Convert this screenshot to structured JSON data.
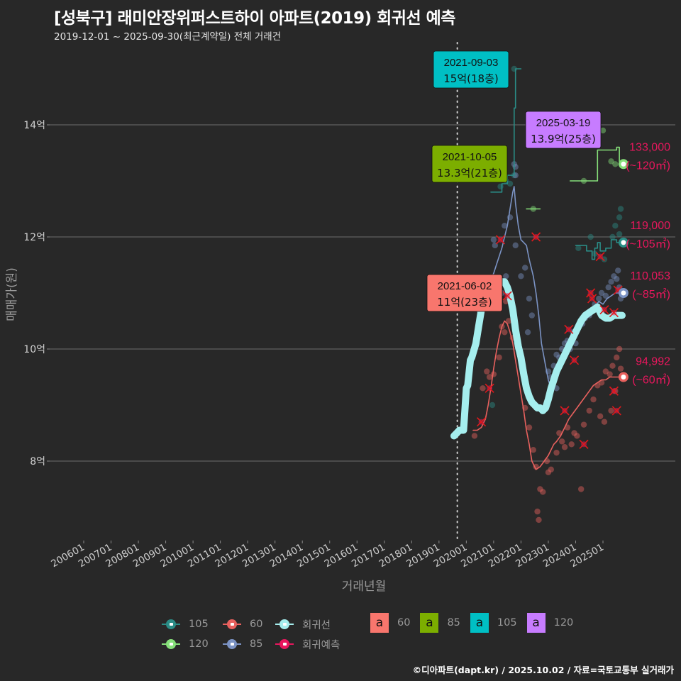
{
  "header": {
    "title": "[성북구] 래미안장위퍼스트하이 아파트(2019) 회귀선 예측",
    "subtitle": "2019-12-01 ~ 2025-09-30(최근계약일) 전체 거래건"
  },
  "footer": "©디아파트(dapt.kr) / 2025.10.02 / 자료=국토교통부 실거래가",
  "chart_data": {
    "type": "line",
    "title": "[성북구] 래미안장위퍼스트하이 아파트(2019) 회귀선 예측",
    "xlabel": "거래년월",
    "ylabel": "매매가(원)",
    "ylim": [
      6.6,
      15.8
    ],
    "xlim": [
      2005.3,
      2026.0
    ],
    "yticks": [
      {
        "value": 8,
        "label": "8억"
      },
      {
        "value": 10,
        "label": "10억"
      },
      {
        "value": 12,
        "label": "12억"
      },
      {
        "value": 14,
        "label": "14억"
      }
    ],
    "xticks": [
      "200601",
      "200701",
      "200801",
      "200901",
      "201001",
      "201101",
      "201201",
      "201301",
      "201401",
      "201501",
      "201601",
      "201701",
      "201801",
      "201901",
      "202001",
      "202101",
      "202201",
      "202301",
      "202401",
      "202501"
    ],
    "grid": true,
    "reference_line": {
      "x": 2019.67,
      "style": "dotted"
    },
    "colors": {
      "s105": "#2a8c86",
      "s60": "#e8615e",
      "s120": "#86e07a",
      "s85": "#7b93c4",
      "regression": "#a5eeee",
      "prediction": "#e8175d",
      "box60": "#f8766d",
      "box85": "#7cae00",
      "box105": "#00bfc4",
      "box120": "#c77cff"
    },
    "series": [
      {
        "name": "105",
        "color": "#2a8c86",
        "x": [
          2020.9,
          2021.2,
          2021.3,
          2021.45,
          2021.5,
          2021.68,
          2021.75,
          2021.8,
          2021.85,
          2021.9,
          2021.95,
          2022.0
        ],
        "y": [
          12.8,
          12.8,
          12.95,
          12.95,
          13.1,
          13.1,
          14.3,
          15.0,
          15.0,
          15.0,
          15.0,
          15.0
        ]
      },
      {
        "name": "105b",
        "color": "#2a8c86",
        "x": [
          2024.0,
          2024.3,
          2024.4,
          2024.5,
          2024.6,
          2024.7,
          2024.8,
          2024.9,
          2025.1,
          2025.3,
          2025.5,
          2025.7
        ],
        "y": [
          11.85,
          11.85,
          11.75,
          11.75,
          11.6,
          11.8,
          11.9,
          11.75,
          11.8,
          11.95,
          11.9,
          11.9
        ]
      },
      {
        "name": "120",
        "color": "#86e07a",
        "x": [
          2022.2,
          2022.7
        ],
        "y": [
          12.5,
          12.5
        ]
      },
      {
        "name": "120b",
        "color": "#86e07a",
        "x": [
          2023.8,
          2024.6,
          2024.75,
          2024.8,
          2025.35,
          2025.5,
          2025.6,
          2025.7
        ],
        "y": [
          13.0,
          13.0,
          13.0,
          13.55,
          13.55,
          13.6,
          13.35,
          13.3
        ]
      },
      {
        "name": "85",
        "color": "#7b93c4",
        "x": [
          2020.4,
          2020.5,
          2020.7,
          2020.85,
          2021.0,
          2021.1,
          2021.2,
          2021.3,
          2021.4,
          2021.5,
          2021.6,
          2021.7,
          2021.75,
          2021.8,
          2021.9,
          2022.0,
          2022.1,
          2022.2,
          2022.3,
          2022.45,
          2022.55,
          2022.65,
          2022.75,
          2022.9,
          2023.0,
          2023.1,
          2023.2,
          2023.35,
          2023.5,
          2023.65,
          2023.8,
          2023.95,
          2024.1,
          2024.25,
          2024.4,
          2024.55,
          2024.7,
          2024.85,
          2025.0,
          2025.15,
          2025.3,
          2025.45,
          2025.6,
          2025.7
        ],
        "y": [
          10.7,
          10.9,
          11.0,
          11.2,
          11.35,
          11.5,
          11.65,
          11.8,
          12.0,
          12.2,
          12.5,
          12.8,
          12.9,
          12.6,
          12.2,
          11.95,
          11.9,
          11.85,
          11.6,
          11.3,
          11.0,
          10.6,
          10.1,
          9.7,
          9.45,
          9.3,
          9.35,
          9.55,
          9.75,
          9.95,
          10.1,
          10.2,
          10.35,
          10.5,
          10.6,
          10.65,
          10.75,
          10.85,
          10.8,
          10.9,
          10.95,
          11.0,
          11.0,
          11.0
        ]
      },
      {
        "name": "60",
        "color": "#e8615e",
        "x": [
          2020.25,
          2020.4,
          2020.55,
          2020.7,
          2020.8,
          2020.9,
          2021.0,
          2021.1,
          2021.2,
          2021.3,
          2021.4,
          2021.5,
          2021.6,
          2021.7,
          2021.8,
          2021.9,
          2022.0,
          2022.1,
          2022.2,
          2022.3,
          2022.4,
          2022.55,
          2022.7,
          2022.85,
          2023.0,
          2023.1,
          2023.2,
          2023.3,
          2023.45,
          2023.6,
          2023.75,
          2023.9,
          2024.05,
          2024.2,
          2024.35,
          2024.5,
          2024.65,
          2024.8,
          2024.95,
          2025.1,
          2025.25,
          2025.4,
          2025.55,
          2025.7
        ],
        "y": [
          8.55,
          8.55,
          8.6,
          8.75,
          9.0,
          9.3,
          9.65,
          9.95,
          10.2,
          10.4,
          10.5,
          10.45,
          10.3,
          10.1,
          9.8,
          9.5,
          9.2,
          8.9,
          8.55,
          8.3,
          8.0,
          7.85,
          7.9,
          8.0,
          8.1,
          8.2,
          8.3,
          8.35,
          8.45,
          8.6,
          8.75,
          8.85,
          8.95,
          9.05,
          9.15,
          9.25,
          9.35,
          9.4,
          9.45,
          9.45,
          9.5,
          9.5,
          9.5,
          9.5
        ]
      },
      {
        "name": "회귀선",
        "color": "#a5eeee",
        "x": [
          2019.55,
          2019.65,
          2019.75,
          2019.85,
          2019.9,
          2020.0,
          2020.05,
          2020.15,
          2020.2,
          2020.35,
          2020.45,
          2020.55,
          2020.7,
          2020.8,
          2020.9,
          2021.0,
          2021.1,
          2021.2,
          2021.3,
          2021.4,
          2021.5,
          2021.6,
          2021.7,
          2021.8,
          2021.9,
          2022.0,
          2022.1,
          2022.2,
          2022.3,
          2022.4,
          2022.5,
          2022.6,
          2022.7,
          2022.8,
          2022.9,
          2023.0,
          2023.1,
          2023.2,
          2023.3,
          2023.45,
          2023.6,
          2023.75,
          2023.9,
          2024.05,
          2024.2,
          2024.35,
          2024.5,
          2024.65,
          2024.8,
          2024.95,
          2025.1,
          2025.25,
          2025.4,
          2025.55,
          2025.7
        ],
        "y": [
          8.45,
          8.5,
          8.55,
          8.55,
          8.55,
          9.3,
          9.35,
          9.8,
          9.85,
          10.1,
          10.4,
          10.7,
          10.85,
          11.0,
          11.1,
          11.15,
          11.2,
          11.2,
          11.2,
          11.2,
          11.1,
          10.95,
          10.7,
          10.35,
          10.05,
          9.85,
          9.55,
          9.3,
          9.15,
          9.05,
          9.0,
          8.95,
          8.95,
          8.9,
          8.95,
          9.1,
          9.3,
          9.45,
          9.6,
          9.75,
          9.9,
          10.05,
          10.2,
          10.35,
          10.5,
          10.6,
          10.65,
          10.7,
          10.75,
          10.6,
          10.55,
          10.55,
          10.6,
          10.6,
          10.6
        ]
      }
    ],
    "points": {
      "s105": [
        [
          2021.25,
          12.9
        ],
        [
          2021.45,
          13.0
        ],
        [
          2021.6,
          12.95
        ],
        [
          2021.75,
          13.1
        ],
        [
          2024.1,
          11.8
        ],
        [
          2024.55,
          12.0
        ],
        [
          2024.7,
          11.7
        ],
        [
          2025.05,
          11.6
        ],
        [
          2025.35,
          12.0
        ],
        [
          2025.45,
          12.2
        ],
        [
          2025.6,
          12.35
        ],
        [
          2025.6,
          12.05
        ],
        [
          2025.65,
          12.5
        ],
        [
          2021.75,
          15.0
        ],
        [
          2020.95,
          9.0
        ]
      ],
      "s120": [
        [
          2022.45,
          12.5
        ],
        [
          2024.3,
          13.0
        ],
        [
          2025.0,
          13.9
        ],
        [
          2025.3,
          13.35
        ],
        [
          2025.45,
          13.3
        ]
      ],
      "s85": [
        [
          2021.6,
          12.35
        ],
        [
          2021.4,
          12.2
        ],
        [
          2021.75,
          13.3
        ],
        [
          2021.8,
          13.1
        ],
        [
          2021.8,
          13.25
        ],
        [
          2021.0,
          11.95
        ],
        [
          2021.05,
          11.85
        ],
        [
          2021.8,
          11.85
        ],
        [
          2022.0,
          11.3
        ],
        [
          2022.15,
          11.45
        ],
        [
          2022.3,
          10.9
        ],
        [
          2022.4,
          10.6
        ],
        [
          2022.25,
          10.3
        ],
        [
          2023.0,
          9.6
        ],
        [
          2023.1,
          9.5
        ],
        [
          2023.2,
          9.7
        ],
        [
          2023.3,
          9.9
        ],
        [
          2023.4,
          9.85
        ],
        [
          2023.5,
          10.0
        ],
        [
          2023.6,
          10.1
        ],
        [
          2023.7,
          10.15
        ],
        [
          2023.8,
          10.0
        ],
        [
          2023.9,
          10.3
        ],
        [
          2024.0,
          10.1
        ],
        [
          2024.1,
          10.4
        ],
        [
          2024.25,
          10.45
        ],
        [
          2024.35,
          10.55
        ],
        [
          2024.5,
          10.6
        ],
        [
          2024.6,
          10.7
        ],
        [
          2024.7,
          10.8
        ],
        [
          2024.85,
          10.9
        ],
        [
          2024.95,
          11.0
        ],
        [
          2025.1,
          10.95
        ],
        [
          2025.2,
          11.1
        ],
        [
          2025.3,
          11.2
        ],
        [
          2025.4,
          11.3
        ],
        [
          2025.5,
          11.25
        ],
        [
          2025.55,
          11.4
        ],
        [
          2025.6,
          11.1
        ],
        [
          2025.65,
          10.9
        ],
        [
          2023.05,
          9.2
        ],
        [
          2022.95,
          9.0
        ],
        [
          2023.3,
          9.3
        ],
        [
          2022.85,
          8.95
        ],
        [
          2021.3,
          11.0
        ],
        [
          2021.45,
          11.3
        ],
        [
          2020.45,
          10.7
        ]
      ],
      "s60": [
        [
          2020.3,
          8.45
        ],
        [
          2020.6,
          9.3
        ],
        [
          2020.75,
          9.6
        ],
        [
          2020.85,
          9.5
        ],
        [
          2021.0,
          9.55
        ],
        [
          2021.2,
          9.85
        ],
        [
          2021.3,
          10.4
        ],
        [
          2021.45,
          10.85
        ],
        [
          2021.55,
          10.5
        ],
        [
          2021.7,
          10.2
        ],
        [
          2021.4,
          10.3
        ],
        [
          2022.15,
          8.95
        ],
        [
          2022.3,
          8.6
        ],
        [
          2022.55,
          7.9
        ],
        [
          2022.7,
          7.5
        ],
        [
          2022.8,
          7.45
        ],
        [
          2022.6,
          7.1
        ],
        [
          2022.65,
          6.95
        ],
        [
          2022.95,
          8.0
        ],
        [
          2023.1,
          7.85
        ],
        [
          2023.3,
          8.15
        ],
        [
          2023.4,
          8.5
        ],
        [
          2023.5,
          8.35
        ],
        [
          2023.6,
          8.25
        ],
        [
          2023.7,
          8.6
        ],
        [
          2023.85,
          8.3
        ],
        [
          2023.95,
          8.5
        ],
        [
          2024.05,
          8.45
        ],
        [
          2024.2,
          7.5
        ],
        [
          2024.3,
          8.65
        ],
        [
          2024.5,
          8.9
        ],
        [
          2024.65,
          9.1
        ],
        [
          2024.8,
          9.35
        ],
        [
          2024.95,
          9.4
        ],
        [
          2025.1,
          9.6
        ],
        [
          2025.25,
          9.55
        ],
        [
          2025.35,
          9.7
        ],
        [
          2025.5,
          9.85
        ],
        [
          2025.6,
          10.0
        ],
        [
          2025.65,
          9.65
        ],
        [
          2025.45,
          9.25
        ],
        [
          2025.3,
          8.9
        ],
        [
          2025.05,
          8.7
        ],
        [
          2024.9,
          8.8
        ],
        [
          2023.0,
          7.8
        ],
        [
          2022.45,
          8.2
        ]
      ],
      "prediction_x": [
        [
          2020.55,
          8.7
        ],
        [
          2020.85,
          9.3
        ],
        [
          2021.5,
          10.95
        ],
        [
          2022.55,
          12.0
        ],
        [
          2021.25,
          11.95
        ],
        [
          2023.75,
          10.35
        ],
        [
          2023.95,
          9.8
        ],
        [
          2024.55,
          11.0
        ],
        [
          2024.6,
          10.9
        ],
        [
          2024.9,
          11.65
        ],
        [
          2025.05,
          10.7
        ],
        [
          2025.4,
          10.65
        ],
        [
          2025.4,
          9.25
        ],
        [
          2025.5,
          8.9
        ],
        [
          2025.55,
          11.05
        ],
        [
          2023.6,
          8.9
        ],
        [
          2024.3,
          8.3
        ]
      ]
    },
    "annotations": [
      {
        "date": "2021-09-03",
        "text": "15억(18층)",
        "x": 2021.68,
        "y": 15.0,
        "color": "#00bfc4"
      },
      {
        "date": "2021-10-05",
        "text": "13.3억(21층)",
        "x": 2021.76,
        "y": 13.3,
        "color": "#7cae00"
      },
      {
        "date": "2025-03-19",
        "text": "13.9억(25층)",
        "x": 2025.21,
        "y": 13.9,
        "color": "#c77cff"
      },
      {
        "date": "2021-06-02",
        "text": "11억(23층)",
        "x": 2021.42,
        "y": 11.0,
        "color": "#f8766d"
      }
    ],
    "predictions": [
      {
        "value": "133,000",
        "area": "(~120㎡)",
        "x": 2025.75,
        "y": 13.3,
        "color": "#86e07a"
      },
      {
        "value": "119,000",
        "area": "(~105㎡)",
        "x": 2025.75,
        "y": 11.9,
        "color": "#2a8c86"
      },
      {
        "value": "110,053",
        "area": "(~85㎡)",
        "x": 2025.75,
        "y": 11.0,
        "color": "#7b93c4"
      },
      {
        "value": "94,992",
        "area": "(~60㎡)",
        "x": 2025.75,
        "y": 9.5,
        "color": "#e8615e"
      }
    ],
    "legend": {
      "placement": "bottom",
      "series": [
        {
          "label": "105",
          "color": "#2a8c86"
        },
        {
          "label": "60",
          "color": "#e8615e"
        },
        {
          "label": "회귀선",
          "color": "#a5eeee"
        },
        {
          "label": "120",
          "color": "#86e07a"
        },
        {
          "label": "85",
          "color": "#7b93c4"
        },
        {
          "label": "회귀예측",
          "color": "#e8175d"
        }
      ],
      "labels": [
        {
          "glyph": "a",
          "label": "60",
          "color": "#f8766d"
        },
        {
          "glyph": "a",
          "label": "85",
          "color": "#7cae00"
        },
        {
          "glyph": "a",
          "label": "105",
          "color": "#00bfc4"
        },
        {
          "glyph": "a",
          "label": "120",
          "color": "#c77cff"
        }
      ]
    }
  }
}
